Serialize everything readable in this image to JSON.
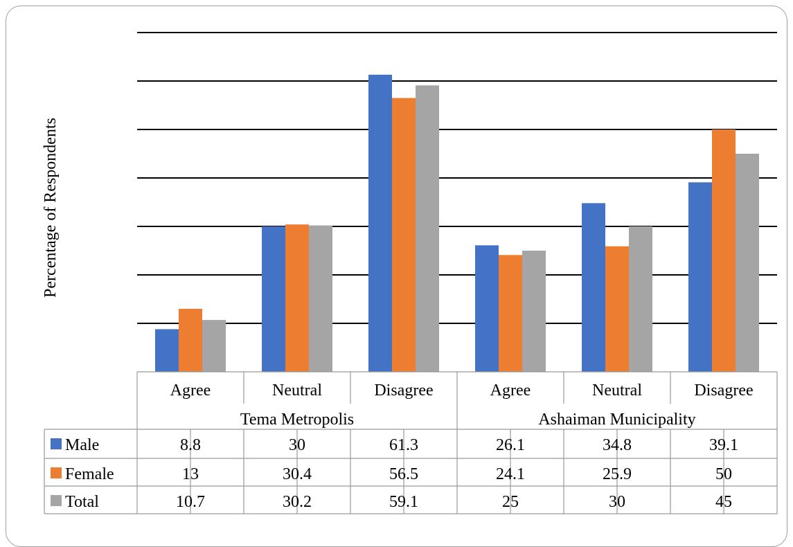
{
  "chart_data": {
    "type": "bar",
    "ylabel": "Percentage of Respondents",
    "ylim": [
      0,
      70
    ],
    "grid": true,
    "legend": "data-table",
    "categories": [
      "Agree",
      "Neutral",
      "Disagree",
      "Agree",
      "Neutral",
      "Disagree"
    ],
    "groups": [
      {
        "label": "Tema Metropolis",
        "span": [
          0,
          2
        ]
      },
      {
        "label": "Ashaiman Municipality",
        "span": [
          3,
          5
        ]
      }
    ],
    "series": [
      {
        "name": "Male",
        "color": "#4472C4",
        "values": [
          8.8,
          30,
          61.3,
          26.1,
          34.8,
          39.1
        ]
      },
      {
        "name": "Female",
        "color": "#ED7D31",
        "values": [
          13,
          30.4,
          56.5,
          24.1,
          25.9,
          50
        ]
      },
      {
        "name": "Total",
        "color": "#A5A5A5",
        "values": [
          10.7,
          30.2,
          59.1,
          25,
          30,
          45
        ]
      }
    ],
    "table_values": [
      [
        "8.8",
        "30",
        "61.3",
        "26.1",
        "34.8",
        "39.1"
      ],
      [
        "13",
        "30.4",
        "56.5",
        "24.1",
        "25.9",
        "50"
      ],
      [
        "10.7",
        "30.2",
        "59.1",
        "25",
        "30",
        "45"
      ]
    ]
  }
}
